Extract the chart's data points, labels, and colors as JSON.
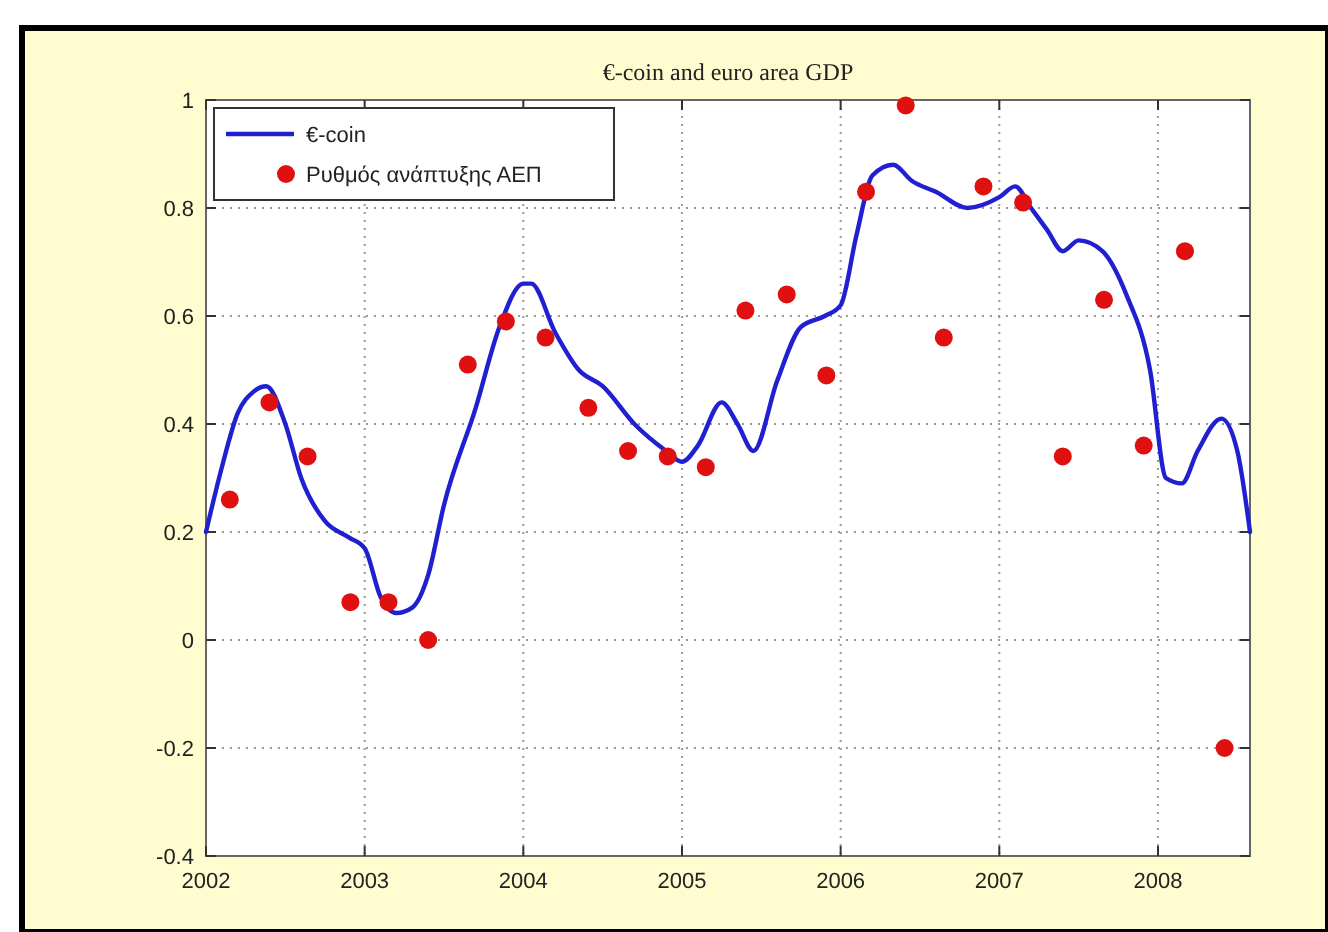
{
  "chart_data": {
    "type": "line",
    "title": "€-coin and euro area GDP",
    "xlim": [
      2002,
      2008.58
    ],
    "xticks": [
      2002,
      2003,
      2004,
      2005,
      2006,
      2007,
      2008
    ],
    "ylim": [
      -0.4,
      1
    ],
    "yticks": [
      -0.4,
      -0.2,
      0,
      0.2,
      0.4,
      0.6,
      0.8,
      1
    ],
    "grid": true,
    "legend": "top left",
    "series": [
      {
        "name": "€-coin",
        "color": "#2020d0",
        "line_style": "solid",
        "x": [
          2002,
          2002.1,
          2002.2,
          2002.3,
          2002.38,
          2002.5,
          2002.6,
          2002.75,
          2002.9,
          2003,
          2003.1,
          2003.2,
          2003.3,
          2003.4,
          2003.5,
          2003.7,
          2003.85,
          2004,
          2004.05,
          2004.2,
          2004.35,
          2004.5,
          2004.7,
          2004.9,
          2005,
          2005.1,
          2005.25,
          2005.35,
          2005.45,
          2005.6,
          2005.75,
          2005.9,
          2006,
          2006.1,
          2006.2,
          2006.33,
          2006.45,
          2006.6,
          2006.8,
          2007,
          2007.1,
          2007.2,
          2007.3,
          2007.4,
          2007.5,
          2007.65,
          2007.8,
          2007.95,
          2008.05,
          2008.15,
          2008.25,
          2008.4,
          2008.5,
          2008.58
        ],
        "values": [
          0.2,
          0.32,
          0.42,
          0.46,
          0.47,
          0.4,
          0.3,
          0.22,
          0.19,
          0.17,
          0.08,
          0.05,
          0.06,
          0.12,
          0.25,
          0.43,
          0.58,
          0.66,
          0.66,
          0.57,
          0.5,
          0.47,
          0.4,
          0.35,
          0.33,
          0.36,
          0.44,
          0.4,
          0.35,
          0.48,
          0.58,
          0.6,
          0.62,
          0.75,
          0.86,
          0.88,
          0.85,
          0.83,
          0.8,
          0.82,
          0.84,
          0.8,
          0.76,
          0.72,
          0.74,
          0.72,
          0.64,
          0.5,
          0.3,
          0.29,
          0.35,
          0.41,
          0.35,
          0.2
        ]
      },
      {
        "name": "Ρυθμός ανάπτυξης ΑΕΠ",
        "type": "scatter",
        "color": "#e01010",
        "marker": "circle",
        "x": [
          2002.15,
          2002.4,
          2002.64,
          2002.91,
          2003.15,
          2003.4,
          2003.65,
          2003.89,
          2004.14,
          2004.41,
          2004.66,
          2004.91,
          2005.15,
          2005.4,
          2005.66,
          2005.91,
          2006.16,
          2006.41,
          2006.65,
          2006.9,
          2007.15,
          2007.4,
          2007.66,
          2007.91,
          2008.17,
          2008.42
        ],
        "values": [
          0.26,
          0.44,
          0.34,
          0.07,
          0.07,
          0,
          0.51,
          0.59,
          0.56,
          0.43,
          0.35,
          0.34,
          0.32,
          0.61,
          0.64,
          0.49,
          0.83,
          0.99,
          0.56,
          0.84,
          0.81,
          0.34,
          0.63,
          0.36,
          0.72,
          -0.2
        ]
      }
    ]
  }
}
